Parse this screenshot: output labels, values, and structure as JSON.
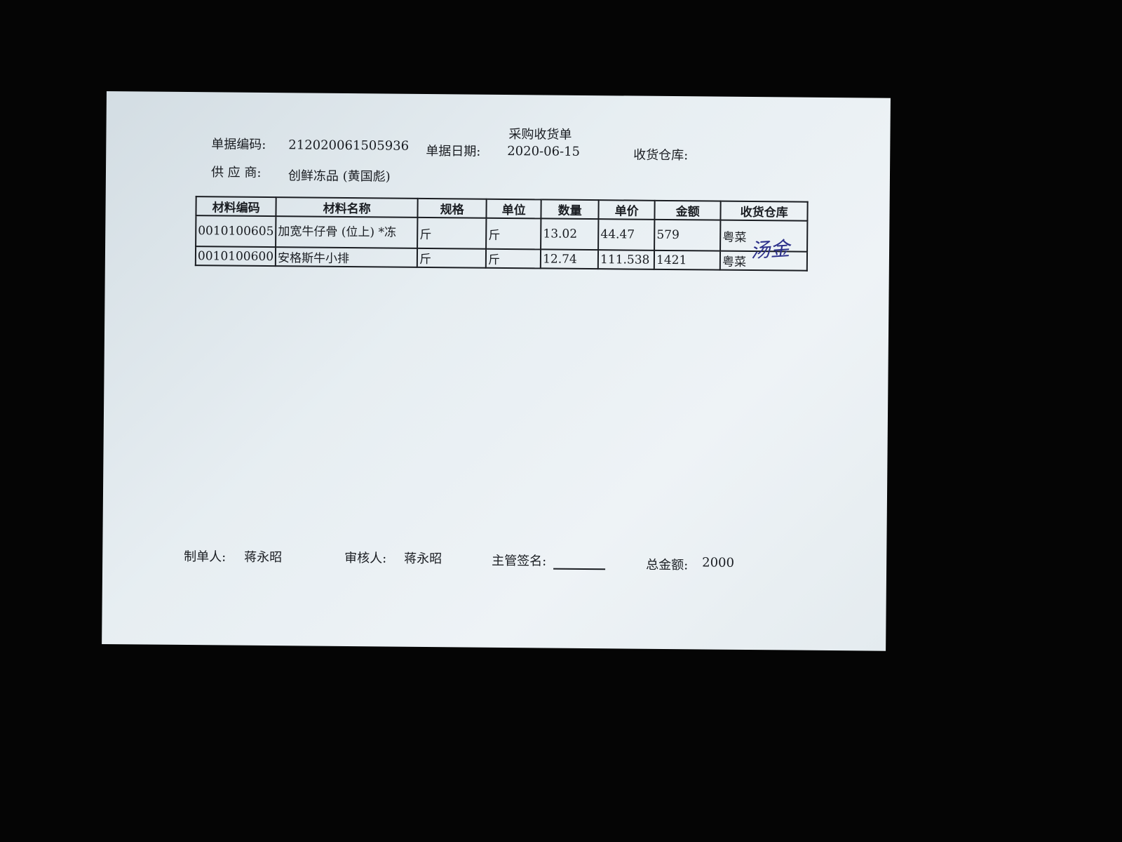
{
  "title": "采购收货单",
  "header": {
    "doc_no_label": "单据编码:",
    "doc_no": "212020061505936",
    "date_label": "单据日期:",
    "date": "2020-06-15",
    "warehouse_label": "收货仓库:",
    "supplier_label": "供 应 商:",
    "supplier": "创鲜冻品 (黄国彪)"
  },
  "table": {
    "columns": [
      "材料编码",
      "材料名称",
      "规格",
      "单位",
      "数量",
      "单价",
      "金额",
      "收货仓库"
    ],
    "rows": [
      [
        "0010100605",
        "加宽牛仔骨 (位上) *冻",
        "斤",
        "斤",
        "13.02",
        "44.47",
        "579",
        "粤菜"
      ],
      [
        "0010100600",
        "安格斯牛小排",
        "斤",
        "斤",
        "12.74",
        "111.538",
        "1421",
        "粤菜"
      ]
    ]
  },
  "signature": "汤金",
  "footer": {
    "maker_label": "制单人:",
    "maker": "蒋永昭",
    "reviewer_label": "审核人:",
    "reviewer": "蒋永昭",
    "supervisor_label": "主管签名:",
    "total_label": "总金额:",
    "total": "2000"
  }
}
